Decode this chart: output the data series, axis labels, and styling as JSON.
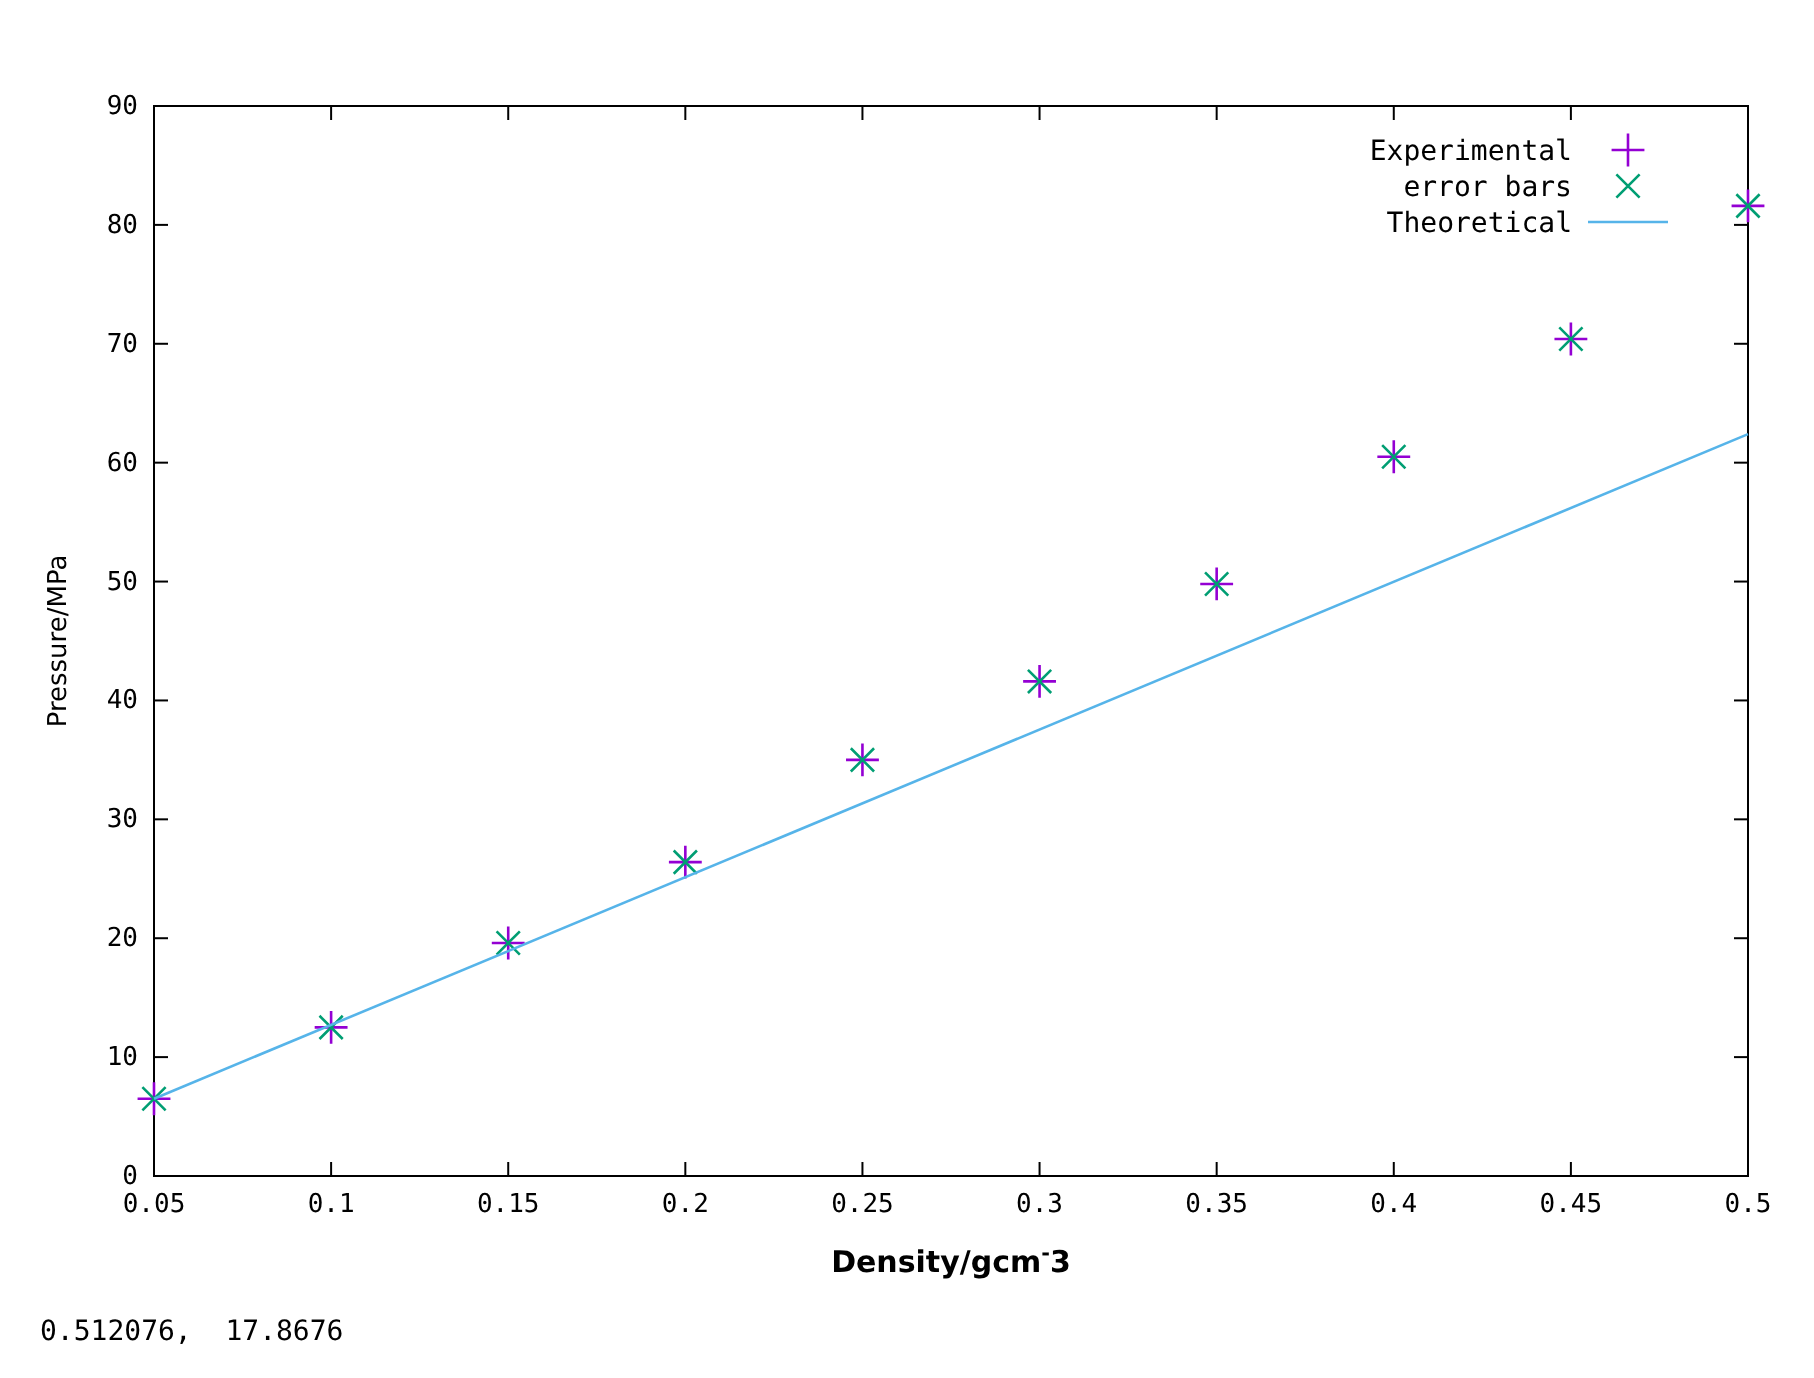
{
  "chart_data": {
    "type": "scatter",
    "xlabel": "Density/gcm$^{-}$3",
    "ylabel": "Pressure/MPa",
    "x": [
      0.05,
      0.1,
      0.15,
      0.2,
      0.25,
      0.3,
      0.35,
      0.4,
      0.45,
      0.5
    ],
    "series": [
      {
        "name": "Experimental",
        "color": "#9400d3",
        "marker": "cross",
        "values": [
          6.5,
          12.5,
          19.6,
          26.4,
          35,
          41.6,
          49.8,
          60.5,
          70.4,
          81.6
        ]
      },
      {
        "name": "error bars",
        "color": "#009e73",
        "marker": "cross",
        "values": [
          6.5,
          12.5,
          19.6,
          26.4,
          35,
          41.6,
          49.8,
          60.5,
          70.4,
          81.6
        ]
      },
      {
        "name": "Theoretical",
        "type": "line",
        "color": "#56b4e9",
        "marker": "none",
        "line_style": "solid",
        "x": [
          0.05,
          0.5
        ],
        "values": [
          6.5,
          62.4
        ]
      }
    ],
    "xlim": [
      0.05,
      0.5
    ],
    "xticks": [
      0.05,
      0.1,
      0.15,
      0.2,
      0.25,
      0.3,
      0.35,
      0.4,
      0.45,
      0.5
    ],
    "ylim": [
      0,
      90
    ],
    "yticks": [
      0,
      10,
      20,
      30,
      40,
      50,
      60,
      70,
      80,
      90
    ],
    "grid": false,
    "legend": "top right",
    "annotations": [
      "0.512076,  17.8676"
    ]
  }
}
